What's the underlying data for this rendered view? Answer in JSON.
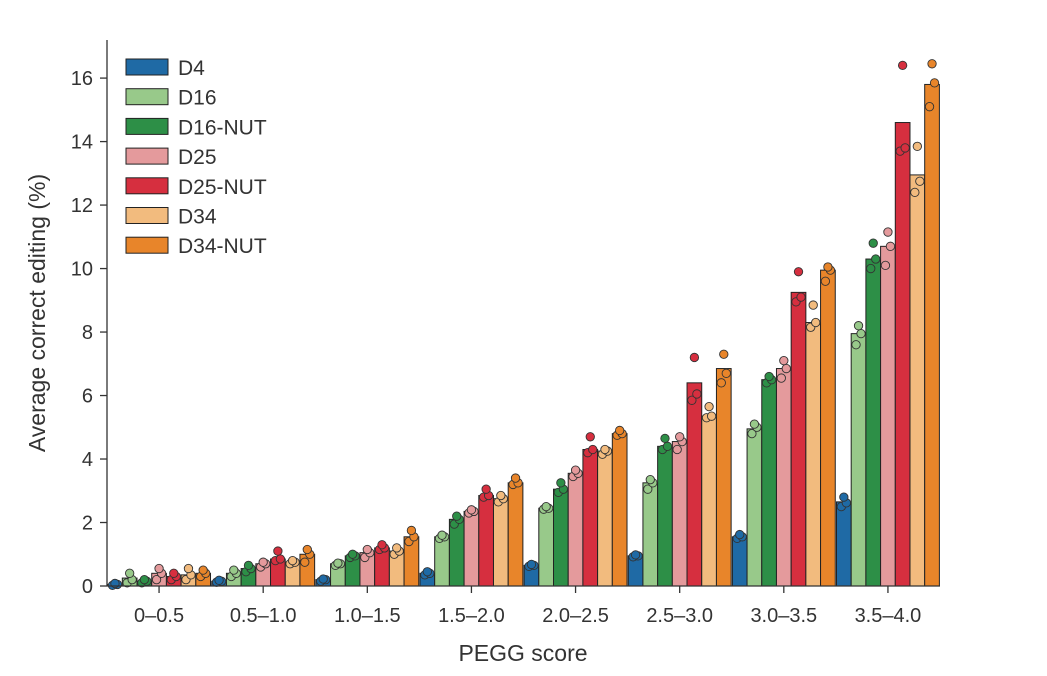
{
  "chart_data": {
    "type": "bar",
    "title": "",
    "xlabel": "PEGG score",
    "ylabel": "Average correct editing (%)",
    "ylim": [
      0,
      17.2
    ],
    "yticks": [
      0,
      2,
      4,
      6,
      8,
      10,
      12,
      14,
      16
    ],
    "categories": [
      "0–0.5",
      "0.5–1.0",
      "1.0–1.5",
      "1.5–2.0",
      "2.0–2.5",
      "2.5–3.0",
      "3.0–3.5",
      "3.5–4.0"
    ],
    "legend_position": "top-left",
    "grid": false,
    "series": [
      {
        "name": "D4",
        "color": "#1f6aa5",
        "values": [
          0.05,
          0.15,
          0.2,
          0.4,
          0.65,
          0.95,
          1.55,
          2.65
        ],
        "replicates": [
          [
            0.02,
            0.05,
            0.08
          ],
          [
            0.12,
            0.15,
            0.18
          ],
          [
            0.15,
            0.2,
            0.22
          ],
          [
            0.35,
            0.4,
            0.45
          ],
          [
            0.62,
            0.65,
            0.68
          ],
          [
            0.92,
            0.95,
            0.98
          ],
          [
            1.5,
            1.55,
            1.62
          ],
          [
            2.5,
            2.62,
            2.8
          ]
        ]
      },
      {
        "name": "D16",
        "color": "#98c98a",
        "values": [
          0.25,
          0.4,
          0.7,
          1.55,
          2.45,
          3.25,
          4.95,
          7.95
        ],
        "replicates": [
          [
            0.1,
            0.2,
            0.4
          ],
          [
            0.3,
            0.4,
            0.5
          ],
          [
            0.65,
            0.7,
            0.72
          ],
          [
            1.5,
            1.55,
            1.6
          ],
          [
            2.42,
            2.45,
            2.5
          ],
          [
            3.05,
            3.25,
            3.35
          ],
          [
            4.8,
            5.0,
            5.1
          ],
          [
            7.6,
            7.95,
            8.2
          ]
        ]
      },
      {
        "name": "D16-NUT",
        "color": "#2d8f47",
        "values": [
          0.15,
          0.55,
          0.95,
          2.1,
          3.05,
          4.4,
          6.5,
          10.3
        ],
        "replicates": [
          [
            0.1,
            0.15,
            0.2
          ],
          [
            0.45,
            0.55,
            0.65
          ],
          [
            0.9,
            0.95,
            1.0
          ],
          [
            1.95,
            2.1,
            2.2
          ],
          [
            2.95,
            3.05,
            3.25
          ],
          [
            4.3,
            4.4,
            4.65
          ],
          [
            6.4,
            6.5,
            6.6
          ],
          [
            10.0,
            10.3,
            10.8
          ]
        ]
      },
      {
        "name": "D25",
        "color": "#e49a9c",
        "values": [
          0.4,
          0.7,
          1.05,
          2.35,
          3.55,
          4.55,
          6.85,
          10.7
        ],
        "replicates": [
          [
            0.2,
            0.4,
            0.55
          ],
          [
            0.6,
            0.7,
            0.75
          ],
          [
            0.9,
            1.05,
            1.15
          ],
          [
            2.3,
            2.35,
            2.4
          ],
          [
            3.45,
            3.55,
            3.65
          ],
          [
            4.3,
            4.55,
            4.7
          ],
          [
            6.55,
            6.85,
            7.1
          ],
          [
            10.1,
            10.7,
            11.15
          ]
        ]
      },
      {
        "name": "D25-NUT",
        "color": "#d62f3f",
        "values": [
          0.3,
          0.85,
          1.2,
          2.85,
          4.3,
          6.4,
          9.25,
          14.6
        ],
        "replicates": [
          [
            0.2,
            0.3,
            0.4
          ],
          [
            0.8,
            0.85,
            1.1
          ],
          [
            1.15,
            1.2,
            1.3
          ],
          [
            2.8,
            2.85,
            3.05
          ],
          [
            4.2,
            4.3,
            4.7
          ],
          [
            5.85,
            6.05,
            7.2
          ],
          [
            8.95,
            9.1,
            9.9
          ],
          [
            13.7,
            13.8,
            16.4
          ]
        ]
      },
      {
        "name": "D34",
        "color": "#f2bb7e",
        "values": [
          0.35,
          0.75,
          1.1,
          2.75,
          4.25,
          5.35,
          8.3,
          12.95
        ],
        "replicates": [
          [
            0.2,
            0.35,
            0.55
          ],
          [
            0.7,
            0.75,
            0.8
          ],
          [
            1.0,
            1.1,
            1.2
          ],
          [
            2.65,
            2.75,
            2.85
          ],
          [
            4.15,
            4.25,
            4.3
          ],
          [
            5.3,
            5.35,
            5.65
          ],
          [
            8.15,
            8.3,
            8.85
          ],
          [
            12.4,
            12.75,
            13.85
          ]
        ]
      },
      {
        "name": "D34-NUT",
        "color": "#e8852a",
        "values": [
          0.4,
          1.0,
          1.55,
          3.25,
          4.8,
          6.85,
          9.95,
          15.8
        ],
        "replicates": [
          [
            0.3,
            0.4,
            0.5
          ],
          [
            0.75,
            1.0,
            1.15
          ],
          [
            1.4,
            1.55,
            1.75
          ],
          [
            3.2,
            3.25,
            3.4
          ],
          [
            4.75,
            4.8,
            4.9
          ],
          [
            6.4,
            6.7,
            7.3
          ],
          [
            9.6,
            9.95,
            10.05
          ],
          [
            15.1,
            15.85,
            16.45
          ]
        ]
      }
    ]
  }
}
